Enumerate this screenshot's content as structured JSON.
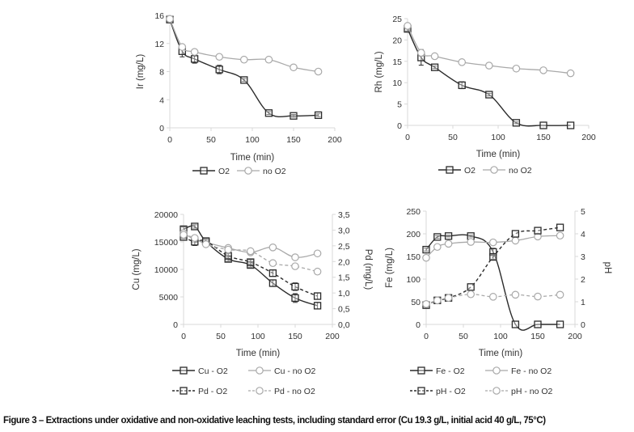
{
  "caption": "Figure 3 – Extractions under oxidative and non-oxidative leaching tests, including standard error (Cu 19.3 g/L, initial acid 40 g/L, 75°C)",
  "chart_data": [
    {
      "id": "ir",
      "type": "line",
      "xlabel": "Time (min)",
      "ylabel": "Ir (mg/L)",
      "xlim": [
        0,
        200
      ],
      "xticks": [
        0,
        50,
        100,
        150,
        200
      ],
      "ylim": [
        0,
        16
      ],
      "yticks": [
        0,
        4,
        8,
        12,
        16
      ],
      "grid": false,
      "legend": "bottom",
      "series": [
        {
          "name": "O2",
          "axis": "left",
          "style": "solid-dark-square",
          "x": [
            0,
            15,
            30,
            60,
            90,
            120,
            150,
            180
          ],
          "y": [
            15.4,
            10.9,
            9.8,
            8.3,
            6.8,
            2.1,
            1.7,
            1.8
          ],
          "err": [
            0.3,
            0.8,
            0.6,
            0.6,
            0.2,
            0.2,
            0.2,
            0.2
          ]
        },
        {
          "name": "no O2",
          "axis": "left",
          "style": "solid-light-circle",
          "x": [
            0,
            15,
            30,
            60,
            90,
            120,
            150,
            180
          ],
          "y": [
            15.5,
            11.5,
            10.8,
            10.1,
            9.7,
            9.7,
            8.6,
            8.0
          ],
          "err": [
            0,
            0.3,
            0,
            0,
            0,
            0,
            0,
            0
          ]
        }
      ]
    },
    {
      "id": "rh",
      "type": "line",
      "xlabel": "Time (min)",
      "ylabel": "Rh (mg/L)",
      "xlim": [
        0,
        200
      ],
      "xticks": [
        0,
        50,
        100,
        150,
        200
      ],
      "ylim": [
        0,
        25
      ],
      "yticks": [
        0,
        5,
        10,
        15,
        20,
        25
      ],
      "grid": false,
      "legend": "bottom",
      "series": [
        {
          "name": "O2",
          "axis": "left",
          "style": "solid-dark-square",
          "x": [
            0,
            15,
            30,
            60,
            90,
            120,
            150,
            180
          ],
          "y": [
            22.6,
            15.9,
            13.6,
            9.4,
            7.2,
            0.6,
            0.0,
            0.0
          ],
          "err": [
            0.5,
            1.8,
            0.3,
            0.8,
            0.3,
            0.2,
            0,
            0
          ]
        },
        {
          "name": "no O2",
          "axis": "left",
          "style": "solid-light-circle",
          "x": [
            0,
            15,
            30,
            60,
            90,
            120,
            150,
            180
          ],
          "y": [
            23.3,
            17.0,
            16.2,
            14.8,
            14.0,
            13.3,
            12.9,
            12.2
          ],
          "err": [
            0,
            0.8,
            0,
            0,
            0,
            0,
            0,
            0
          ]
        }
      ]
    },
    {
      "id": "cu-pd",
      "type": "line",
      "xlabel": "Time (min)",
      "ylabel": "Cu (mg/L)",
      "y2label": "Pd (mg/L)",
      "xlim": [
        0,
        200
      ],
      "xticks": [
        0,
        50,
        100,
        150,
        200
      ],
      "ylim": [
        0,
        20000
      ],
      "yticks": [
        0,
        5000,
        10000,
        15000,
        20000
      ],
      "y2lim": [
        0,
        3.5
      ],
      "y2ticks": [
        "0,0",
        "0,5",
        "1,0",
        "1,5",
        "2,0",
        "2,5",
        "3,0",
        "3,5"
      ],
      "grid": false,
      "legend": "bottom",
      "series": [
        {
          "name": "Cu - O2",
          "axis": "left",
          "style": "solid-dark-square",
          "x": [
            0,
            15,
            30,
            60,
            90,
            120,
            150,
            180
          ],
          "y": [
            17300,
            17800,
            15100,
            11900,
            10800,
            7500,
            4800,
            3400
          ],
          "err": [
            400,
            300,
            300,
            400,
            400,
            600,
            800,
            600
          ]
        },
        {
          "name": "Cu - no O2",
          "axis": "left",
          "style": "solid-light-circle",
          "x": [
            0,
            15,
            30,
            60,
            90,
            120,
            150,
            180
          ],
          "y": [
            16600,
            15400,
            14900,
            13900,
            13100,
            14000,
            12200,
            12900
          ],
          "err": [
            0,
            0,
            0,
            0,
            0,
            0,
            0,
            0
          ]
        },
        {
          "name": "Pd - O2",
          "axis": "right",
          "style": "dashed-dark-square",
          "x": [
            0,
            15,
            30,
            60,
            90,
            120,
            150,
            180
          ],
          "y": [
            2.78,
            2.63,
            2.65,
            2.18,
            1.98,
            1.63,
            1.2,
            0.9
          ],
          "err": [
            0.05,
            0.12,
            0.05,
            0.08,
            0.08,
            0.1,
            0.12,
            0.1
          ]
        },
        {
          "name": "Pd - no O2",
          "axis": "right",
          "style": "dashed-light-circle",
          "x": [
            0,
            15,
            30,
            60,
            90,
            120,
            150,
            180
          ],
          "y": [
            2.85,
            2.75,
            2.55,
            2.38,
            2.33,
            1.95,
            1.85,
            1.68
          ],
          "err": [
            0,
            0,
            0,
            0,
            0,
            0,
            0,
            0
          ]
        }
      ],
      "legend_entries": [
        {
          "label": "Cu - O2",
          "style": "solid-dark-square"
        },
        {
          "label": "Cu - no O2",
          "style": "solid-light-circle"
        },
        {
          "label": "Pd - O2",
          "style": "dashed-dark-square"
        },
        {
          "label": "Pd - no O2",
          "style": "dashed-light-circle"
        }
      ]
    },
    {
      "id": "fe-ph",
      "type": "line",
      "xlabel": "Time (min)",
      "ylabel": "Fe (mg/L)",
      "y2label": "pH",
      "xlim": [
        0,
        200
      ],
      "xticks": [
        0,
        50,
        100,
        150,
        200
      ],
      "ylim": [
        0,
        250
      ],
      "yticks": [
        0,
        50,
        100,
        150,
        200,
        250
      ],
      "y2lim": [
        0,
        5
      ],
      "y2ticks": [
        "0",
        "1",
        "2",
        "3",
        "4",
        "5"
      ],
      "grid": false,
      "legend": "bottom",
      "series": [
        {
          "name": "Fe - O2",
          "axis": "left",
          "style": "solid-dark-square",
          "x": [
            0,
            15,
            30,
            60,
            90,
            120,
            150,
            180
          ],
          "y": [
            165,
            193,
            195,
            195,
            160,
            0,
            0,
            0
          ],
          "err": [
            3,
            3,
            2,
            2,
            8,
            0,
            0,
            0
          ]
        },
        {
          "name": "Fe - no O2",
          "axis": "left",
          "style": "solid-light-circle",
          "x": [
            0,
            15,
            30,
            60,
            90,
            120,
            150,
            180
          ],
          "y": [
            147,
            171,
            178,
            182,
            181,
            185,
            194,
            196
          ],
          "err": [
            0,
            0,
            0,
            0,
            0,
            0,
            0,
            0
          ]
        },
        {
          "name": "pH - O2",
          "axis": "right",
          "style": "dashed-dark-square",
          "x": [
            0,
            15,
            30,
            60,
            90,
            120,
            150,
            180
          ],
          "y": [
            0.85,
            1.06,
            1.17,
            1.65,
            2.98,
            4.0,
            4.14,
            4.28
          ],
          "err": [
            0,
            0,
            0,
            0,
            0.1,
            0,
            0,
            0
          ]
        },
        {
          "name": "pH - no O2",
          "axis": "right",
          "style": "dashed-light-circle",
          "x": [
            0,
            15,
            30,
            60,
            90,
            120,
            150,
            180
          ],
          "y": [
            0.9,
            1.06,
            1.17,
            1.33,
            1.22,
            1.31,
            1.23,
            1.31
          ],
          "err": [
            0,
            0,
            0,
            0,
            0,
            0,
            0,
            0
          ]
        }
      ],
      "legend_entries": [
        {
          "label": "Fe - O2",
          "style": "solid-dark-square"
        },
        {
          "label": "Fe - no O2",
          "style": "solid-light-circle"
        },
        {
          "label": "pH - O2",
          "style": "dashed-dark-square"
        },
        {
          "label": "pH - no O2",
          "style": "dashed-light-circle"
        }
      ]
    }
  ],
  "colors": {
    "dark": "#2b2b2b",
    "light": "#a9a9a9",
    "axis": "#d9d9d9"
  }
}
